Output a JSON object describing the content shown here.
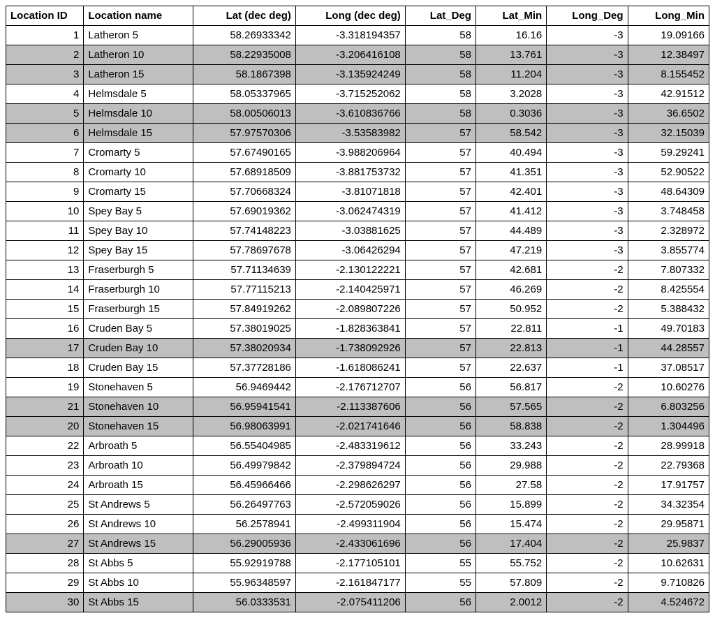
{
  "table": {
    "columns": [
      {
        "label": "Location ID",
        "align": "num"
      },
      {
        "label": "Location name",
        "align": "txt"
      },
      {
        "label": "Lat (dec deg)",
        "align": "num"
      },
      {
        "label": "Long (dec deg)",
        "align": "num"
      },
      {
        "label": "Lat_Deg",
        "align": "num"
      },
      {
        "label": "Lat_Min",
        "align": "num"
      },
      {
        "label": "Long_Deg",
        "align": "num"
      },
      {
        "label": "Long_Min",
        "align": "num"
      }
    ],
    "col_align": [
      "num",
      "txt",
      "num",
      "num",
      "num",
      "num",
      "num",
      "num"
    ],
    "header_align": [
      "txt",
      "txt",
      "num",
      "num",
      "num",
      "num",
      "num",
      "num"
    ],
    "rows": [
      {
        "shaded": false,
        "cells": [
          "1",
          "Latheron 5",
          "58.26933342",
          "-3.318194357",
          "58",
          "16.16",
          "-3",
          "19.09166"
        ]
      },
      {
        "shaded": true,
        "cells": [
          "2",
          "Latheron 10",
          "58.22935008",
          "-3.206416108",
          "58",
          "13.761",
          "-3",
          "12.38497"
        ]
      },
      {
        "shaded": true,
        "cells": [
          "3",
          "Latheron 15",
          "58.1867398",
          "-3.135924249",
          "58",
          "11.204",
          "-3",
          "8.155452"
        ]
      },
      {
        "shaded": false,
        "cells": [
          "4",
          "Helmsdale 5",
          "58.05337965",
          "-3.715252062",
          "58",
          "3.2028",
          "-3",
          "42.91512"
        ]
      },
      {
        "shaded": true,
        "cells": [
          "5",
          "Helmsdale 10",
          "58.00506013",
          "-3.610836766",
          "58",
          "0.3036",
          "-3",
          "36.6502"
        ]
      },
      {
        "shaded": true,
        "cells": [
          "6",
          "Helmsdale 15",
          "57.97570306",
          "-3.53583982",
          "57",
          "58.542",
          "-3",
          "32.15039"
        ]
      },
      {
        "shaded": false,
        "cells": [
          "7",
          "Cromarty 5",
          "57.67490165",
          "-3.988206964",
          "57",
          "40.494",
          "-3",
          "59.29241"
        ]
      },
      {
        "shaded": false,
        "cells": [
          "8",
          "Cromarty 10",
          "57.68918509",
          "-3.881753732",
          "57",
          "41.351",
          "-3",
          "52.90522"
        ]
      },
      {
        "shaded": false,
        "cells": [
          "9",
          "Cromarty 15",
          "57.70668324",
          "-3.81071818",
          "57",
          "42.401",
          "-3",
          "48.64309"
        ]
      },
      {
        "shaded": false,
        "cells": [
          "10",
          "Spey Bay 5",
          "57.69019362",
          "-3.062474319",
          "57",
          "41.412",
          "-3",
          "3.748458"
        ]
      },
      {
        "shaded": false,
        "cells": [
          "11",
          "Spey Bay 10",
          "57.74148223",
          "-3.03881625",
          "57",
          "44.489",
          "-3",
          "2.328972"
        ]
      },
      {
        "shaded": false,
        "cells": [
          "12",
          "Spey Bay 15",
          "57.78697678",
          "-3.06426294",
          "57",
          "47.219",
          "-3",
          "3.855774"
        ]
      },
      {
        "shaded": false,
        "cells": [
          "13",
          "Fraserburgh 5",
          "57.71134639",
          "-2.130122221",
          "57",
          "42.681",
          "-2",
          "7.807332"
        ]
      },
      {
        "shaded": false,
        "cells": [
          "14",
          "Fraserburgh 10",
          "57.77115213",
          "-2.140425971",
          "57",
          "46.269",
          "-2",
          "8.425554"
        ]
      },
      {
        "shaded": false,
        "cells": [
          "15",
          "Fraserburgh 15",
          "57.84919262",
          "-2.089807226",
          "57",
          "50.952",
          "-2",
          "5.388432"
        ]
      },
      {
        "shaded": false,
        "cells": [
          "16",
          "Cruden Bay 5",
          "57.38019025",
          "-1.828363841",
          "57",
          "22.811",
          "-1",
          "49.70183"
        ]
      },
      {
        "shaded": true,
        "cells": [
          "17",
          "Cruden Bay 10",
          "57.38020934",
          "-1.738092926",
          "57",
          "22.813",
          "-1",
          "44.28557"
        ]
      },
      {
        "shaded": false,
        "cells": [
          "18",
          "Cruden Bay 15",
          "57.37728186",
          "-1.618086241",
          "57",
          "22.637",
          "-1",
          "37.08517"
        ]
      },
      {
        "shaded": false,
        "cells": [
          "19",
          "Stonehaven 5",
          "56.9469442",
          "-2.176712707",
          "56",
          "56.817",
          "-2",
          "10.60276"
        ]
      },
      {
        "shaded": true,
        "cells": [
          "21",
          "Stonehaven 10",
          "56.95941541",
          "-2.113387606",
          "56",
          "57.565",
          "-2",
          "6.803256"
        ]
      },
      {
        "shaded": true,
        "cells": [
          "20",
          "Stonehaven 15",
          "56.98063991",
          "-2.021741646",
          "56",
          "58.838",
          "-2",
          "1.304496"
        ]
      },
      {
        "shaded": false,
        "cells": [
          "22",
          "Arbroath 5",
          "56.55404985",
          "-2.483319612",
          "56",
          "33.243",
          "-2",
          "28.99918"
        ]
      },
      {
        "shaded": false,
        "cells": [
          "23",
          "Arbroath 10",
          "56.49979842",
          "-2.379894724",
          "56",
          "29.988",
          "-2",
          "22.79368"
        ]
      },
      {
        "shaded": false,
        "cells": [
          "24",
          "Arbroath 15",
          "56.45966466",
          "-2.298626297",
          "56",
          "27.58",
          "-2",
          "17.91757"
        ]
      },
      {
        "shaded": false,
        "cells": [
          "25",
          "St Andrews 5",
          "56.26497763",
          "-2.572059026",
          "56",
          "15.899",
          "-2",
          "34.32354"
        ]
      },
      {
        "shaded": false,
        "cells": [
          "26",
          "St Andrews 10",
          "56.2578941",
          "-2.499311904",
          "56",
          "15.474",
          "-2",
          "29.95871"
        ]
      },
      {
        "shaded": true,
        "cells": [
          "27",
          "St Andrews 15",
          "56.29005936",
          "-2.433061696",
          "56",
          "17.404",
          "-2",
          "25.9837"
        ]
      },
      {
        "shaded": false,
        "cells": [
          "28",
          "St Abbs 5",
          "55.92919788",
          "-2.177105101",
          "55",
          "55.752",
          "-2",
          "10.62631"
        ]
      },
      {
        "shaded": false,
        "cells": [
          "29",
          "St Abbs 10",
          "55.96348597",
          "-2.161847177",
          "55",
          "57.809",
          "-2",
          "9.710826"
        ]
      },
      {
        "shaded": true,
        "cells": [
          "30",
          "St Abbs 15",
          "56.0333531",
          "-2.075411206",
          "56",
          "2.0012",
          "-2",
          "4.524672"
        ]
      }
    ],
    "style": {
      "border_color": "#000000",
      "shaded_bg": "#bfbfbf",
      "plain_bg": "#ffffff",
      "font_family": "Arial",
      "font_size_pt": 11,
      "header_font_weight": "bold"
    }
  }
}
